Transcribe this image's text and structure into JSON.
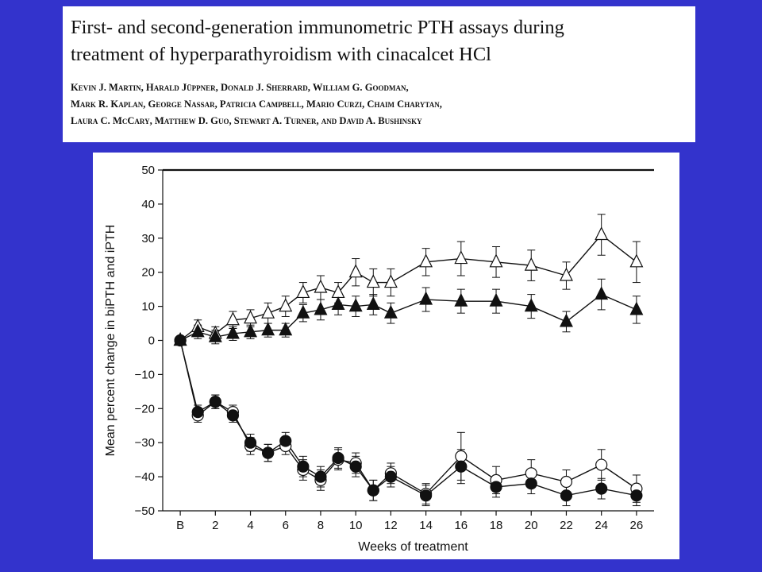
{
  "header": {
    "title_line1": "First- and second-generation immunometric PTH assays during",
    "title_line2": "treatment of hyperparathyroidism with cinacalcet HCl",
    "authors_line1": "Kevin J. Martin, Harald Jüppner, Donald J. Sherrard, William G. Goodman,",
    "authors_line2": "Mark R. Kaplan, George Nassar, Patricia Campbell, Mario Curzi, Chaim Charytan,",
    "authors_line3": "Laura C. McCary, Matthew D. Guo, Stewart A. Turner, and David A. Bushinsky"
  },
  "colors": {
    "background": "#3333CC",
    "panel": "#FFFFFF",
    "ink": "#111111"
  },
  "chart_data": {
    "type": "line",
    "title": "",
    "xlabel": "Weeks of treatment",
    "ylabel": "Mean percent change in biPTH and iPTH",
    "x_tick_labels": [
      "B",
      "2",
      "4",
      "6",
      "8",
      "10",
      "12",
      "14",
      "16",
      "18",
      "20",
      "22",
      "24",
      "26"
    ],
    "y_ticks": [
      50,
      40,
      30,
      20,
      10,
      0,
      -10,
      -20,
      -30,
      -40,
      -50
    ],
    "ylim": [
      -50,
      50
    ],
    "xlim": [
      -1,
      27
    ],
    "grid": false,
    "legend": "none",
    "series": [
      {
        "marker": "open-triangle",
        "x": [
          0,
          1,
          2,
          3,
          4,
          5,
          6,
          7,
          8,
          9,
          10,
          11,
          12,
          14,
          16,
          18,
          20,
          22,
          24,
          26
        ],
        "y": [
          0,
          4,
          2,
          6,
          6.5,
          8,
          10,
          14,
          15.5,
          14,
          20,
          17,
          17,
          23,
          24,
          23,
          22,
          19,
          31,
          23
        ],
        "err": [
          0,
          2,
          2,
          2.5,
          2.5,
          3,
          3,
          3,
          3.5,
          3,
          4,
          4,
          4,
          4,
          5,
          4.5,
          4.5,
          4,
          6,
          6
        ]
      },
      {
        "marker": "filled-triangle",
        "x": [
          0,
          1,
          2,
          3,
          4,
          5,
          6,
          7,
          8,
          9,
          10,
          11,
          12,
          14,
          16,
          18,
          20,
          22,
          24,
          26
        ],
        "y": [
          0,
          2.5,
          1,
          2,
          2.5,
          3,
          3,
          8,
          9,
          10.5,
          10,
          10.5,
          8,
          12,
          11.5,
          11.5,
          10,
          5.5,
          13.5,
          9
        ],
        "err": [
          0,
          2,
          2,
          2,
          2,
          2,
          2,
          2.5,
          3,
          3,
          3,
          3,
          3,
          3.5,
          3.5,
          3.5,
          3.5,
          3,
          4.5,
          4
        ]
      },
      {
        "marker": "open-circle",
        "x": [
          0,
          1,
          2,
          3,
          4,
          5,
          6,
          7,
          8,
          9,
          10,
          11,
          12,
          14,
          16,
          18,
          20,
          22,
          24,
          26
        ],
        "y": [
          0,
          -22,
          -18,
          -21,
          -31,
          -33,
          -31,
          -38,
          -41,
          -35,
          -36,
          -44,
          -39,
          -45,
          -34,
          -41,
          -39,
          -41.5,
          -36.5,
          -43.5
        ],
        "err": [
          0,
          2,
          2,
          2,
          2.5,
          2.5,
          2.5,
          3,
          3,
          3,
          3,
          3,
          3,
          3,
          7,
          4,
          4,
          3.5,
          4.5,
          4
        ]
      },
      {
        "marker": "filled-circle",
        "x": [
          0,
          1,
          2,
          3,
          4,
          5,
          6,
          7,
          8,
          9,
          10,
          11,
          12,
          14,
          16,
          18,
          20,
          22,
          24,
          26
        ],
        "y": [
          0,
          -21,
          -18,
          -22,
          -30,
          -33,
          -29.5,
          -37,
          -40,
          -34.5,
          -37,
          -44,
          -40,
          -45.5,
          -37,
          -43,
          -42,
          -45.5,
          -43.5,
          -45.5
        ],
        "err": [
          0,
          2,
          2,
          2,
          2.5,
          2.5,
          2.5,
          3,
          3,
          3,
          3,
          3,
          3,
          3,
          5,
          3,
          3,
          3,
          3,
          3
        ]
      }
    ]
  }
}
